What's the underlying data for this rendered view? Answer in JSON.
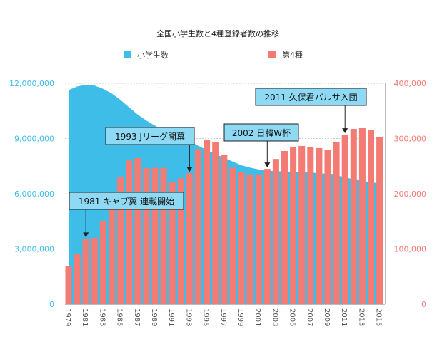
{
  "chart_data": {
    "type": "bar+area",
    "title": "全国小学生数と4種登録者数の推移",
    "categories": [
      1979,
      1980,
      1981,
      1982,
      1983,
      1984,
      1985,
      1986,
      1987,
      1988,
      1989,
      1990,
      1991,
      1992,
      1993,
      1994,
      1995,
      1996,
      1997,
      1998,
      1999,
      2000,
      2001,
      2002,
      2003,
      2004,
      2005,
      2006,
      2007,
      2008,
      2009,
      2010,
      2011,
      2012,
      2013,
      2014,
      2015
    ],
    "x_tick_labels": [
      "1979",
      "1981",
      "1983",
      "1985",
      "1987",
      "1989",
      "1991",
      "1993",
      "1995",
      "1997",
      "1999",
      "2001",
      "2003",
      "2005",
      "2007",
      "2009",
      "2011",
      "2013",
      "2015"
    ],
    "series": [
      {
        "name": "小学生数",
        "type": "area",
        "axis": "left",
        "color": "#3fbde9",
        "values": [
          11630000,
          11830000,
          11920000,
          11880000,
          11700000,
          11450000,
          11100000,
          10700000,
          10300000,
          9980000,
          9700000,
          9450000,
          9280000,
          9100000,
          8850000,
          8600000,
          8380000,
          8150000,
          7960000,
          7750000,
          7550000,
          7420000,
          7320000,
          7260000,
          7230000,
          7210000,
          7200000,
          7180000,
          7150000,
          7120000,
          7080000,
          7000000,
          6900000,
          6780000,
          6700000,
          6630000,
          6560000
        ]
      },
      {
        "name": "第4種",
        "type": "bar",
        "axis": "right",
        "color": "#f47a74",
        "values": [
          68400,
          91600,
          118300,
          120000,
          151000,
          179000,
          231000,
          260000,
          264500,
          246500,
          247000,
          247000,
          221500,
          228000,
          237000,
          281000,
          297600,
          294000,
          270000,
          247000,
          239600,
          234000,
          234000,
          245000,
          263000,
          277400,
          284000,
          286500,
          284000,
          282600,
          280000,
          293000,
          307000,
          317400,
          318700,
          316000,
          303000
        ]
      }
    ],
    "y_left": {
      "range": [
        0,
        12000000
      ],
      "ticks": [
        "0",
        "3,000,000",
        "6,000,000",
        "9,000,000",
        "12,000,000"
      ]
    },
    "y_right": {
      "range": [
        0,
        400000
      ],
      "ticks": [
        "0",
        "100,000",
        "200,000",
        "300,000",
        "400,000"
      ]
    },
    "grid": "horizontal dotted",
    "legend_placement": "top",
    "annotations": [
      {
        "year": 1981,
        "text": "1981 キャプ翼 連載開始"
      },
      {
        "year": 1993,
        "text": "1993 Jリーグ開幕"
      },
      {
        "year": 2002,
        "text": "2002 日韓W杯"
      },
      {
        "year": 2011,
        "text": "2011 久保君バルサ入団"
      }
    ]
  }
}
